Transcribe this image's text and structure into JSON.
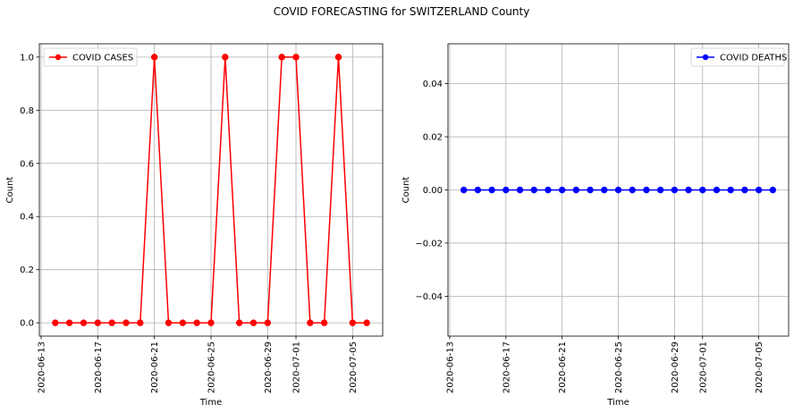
{
  "figure_title": "COVID FORECASTING for SWITZERLAND County",
  "chart_data": [
    {
      "type": "line",
      "xlabel": "Time",
      "ylabel": "Count",
      "grid": true,
      "legend_placement": "top-left",
      "series": [
        {
          "name": "COVID CASES",
          "color": "#ff0000",
          "marker": "circle",
          "x": [
            "2020-06-14",
            "2020-06-15",
            "2020-06-16",
            "2020-06-17",
            "2020-06-18",
            "2020-06-19",
            "2020-06-20",
            "2020-06-21",
            "2020-06-22",
            "2020-06-23",
            "2020-06-24",
            "2020-06-25",
            "2020-06-26",
            "2020-06-27",
            "2020-06-28",
            "2020-06-29",
            "2020-06-30",
            "2020-07-01",
            "2020-07-02",
            "2020-07-03",
            "2020-07-04",
            "2020-07-05",
            "2020-07-06"
          ],
          "values": [
            0,
            0,
            0,
            0,
            0,
            0,
            0,
            1,
            0,
            0,
            0,
            0,
            1,
            0,
            0,
            0,
            1,
            1,
            0,
            0,
            1,
            0,
            0
          ]
        }
      ],
      "xticks": [
        "2020-06-13",
        "2020-06-17",
        "2020-06-21",
        "2020-06-25",
        "2020-06-29",
        "2020-07-01",
        "2020-07-05"
      ],
      "yticks": [
        0.0,
        0.2,
        0.4,
        0.6,
        0.8,
        1.0
      ],
      "ytick_labels": [
        "0.0",
        "0.2",
        "0.4",
        "0.6",
        "0.8",
        "1.0"
      ],
      "xlim": [
        "2020-06-12T21:00",
        "2020-07-07T03:00"
      ],
      "ylim": [
        -0.05,
        1.05
      ]
    },
    {
      "type": "line",
      "xlabel": "Time",
      "ylabel": "Count",
      "grid": true,
      "legend_placement": "top-right",
      "series": [
        {
          "name": "COVID DEATHS",
          "color": "#0000ff",
          "marker": "circle",
          "x": [
            "2020-06-14",
            "2020-06-15",
            "2020-06-16",
            "2020-06-17",
            "2020-06-18",
            "2020-06-19",
            "2020-06-20",
            "2020-06-21",
            "2020-06-22",
            "2020-06-23",
            "2020-06-24",
            "2020-06-25",
            "2020-06-26",
            "2020-06-27",
            "2020-06-28",
            "2020-06-29",
            "2020-06-30",
            "2020-07-01",
            "2020-07-02",
            "2020-07-03",
            "2020-07-04",
            "2020-07-05",
            "2020-07-06"
          ],
          "values": [
            0,
            0,
            0,
            0,
            0,
            0,
            0,
            0,
            0,
            0,
            0,
            0,
            0,
            0,
            0,
            0,
            0,
            0,
            0,
            0,
            0,
            0,
            0
          ]
        }
      ],
      "xticks": [
        "2020-06-13",
        "2020-06-17",
        "2020-06-21",
        "2020-06-25",
        "2020-06-29",
        "2020-07-01",
        "2020-07-05"
      ],
      "yticks": [
        -0.04,
        -0.02,
        0.0,
        0.02,
        0.04
      ],
      "ytick_labels": [
        "−0.04",
        "−0.02",
        "0.00",
        "0.02",
        "0.04"
      ],
      "xlim": [
        "2020-06-12T21:00",
        "2020-07-07T03:00"
      ],
      "ylim": [
        -0.055,
        0.055
      ]
    }
  ]
}
